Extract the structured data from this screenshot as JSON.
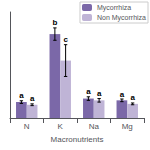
{
  "chart_data": {
    "type": "bar",
    "categories": [
      "N",
      "K",
      "Na",
      "Mg"
    ],
    "xlabel": "Macronutrients",
    "series": [
      {
        "name": "Mycorrhiza",
        "color": "#7B68A8",
        "values": [
          1.8,
          9.5,
          2.2,
          2.0
        ],
        "errors": [
          0.15,
          0.7,
          0.2,
          0.15
        ],
        "letters": [
          "a",
          "b",
          "a",
          "a"
        ]
      },
      {
        "name": "Non Mycorrhiza",
        "color": "#BFB4D6",
        "values": [
          1.5,
          6.5,
          2.0,
          1.6
        ],
        "errors": [
          0.1,
          1.8,
          0.2,
          0.1
        ],
        "letters": [
          "a",
          "c",
          "a",
          "a"
        ]
      }
    ],
    "ylim": [
      0,
      12
    ],
    "tick_labels": "x",
    "grid": false,
    "legend": "upper right"
  }
}
